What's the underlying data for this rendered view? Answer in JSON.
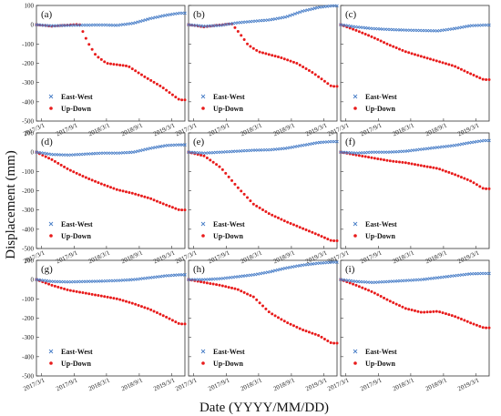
{
  "figure": {
    "ylabel": "Displacement (mm)",
    "xlabel": "Date (YYYY/MM/DD)"
  },
  "colors": {
    "east_west": "#4a7fc8",
    "up_down": "#e81b1b"
  },
  "chart_data": [
    {
      "panel": "(a)",
      "type": "scatter",
      "ylim": [
        -500,
        100
      ],
      "yticks": [
        "100",
        "0",
        "-100",
        "-200",
        "-300",
        "-400",
        "-500"
      ],
      "xticks": [
        "2017/3/1",
        "2017/9/1",
        "2018/3/1",
        "2018/9/1",
        "2019/3/1"
      ],
      "legend": [
        "East-West",
        "Up-Down"
      ],
      "legend_position": "bottom-left",
      "series": [
        {
          "name": "East-West",
          "color": "#4a7fc8",
          "x": [
            "2017/2/1",
            "2017/5/1",
            "2017/8/1",
            "2017/11/1",
            "2018/2/1",
            "2018/5/1",
            "2018/8/1",
            "2018/11/1",
            "2019/2/1",
            "2019/4/15"
          ],
          "y": [
            0,
            -6,
            -3,
            -2,
            -1,
            -3,
            8,
            32,
            50,
            60
          ]
        },
        {
          "name": "Up-Down",
          "color": "#e81b1b",
          "x": [
            "2017/2/1",
            "2017/5/1",
            "2017/7/15",
            "2017/10/1",
            "2017/11/15",
            "2018/1/1",
            "2018/3/1",
            "2018/7/1",
            "2018/10/1",
            "2019/1/1",
            "2019/4/15"
          ],
          "y": [
            0,
            -8,
            -2,
            2,
            -90,
            -160,
            -200,
            -215,
            -270,
            -320,
            -390
          ]
        }
      ]
    },
    {
      "panel": "(b)",
      "type": "scatter",
      "ylim": [
        -500,
        100
      ],
      "xticks": [
        "2017/3/1",
        "2017/9/1",
        "2018/3/1",
        "2018/9/1",
        "2019/3/1"
      ],
      "legend": [
        "East-West",
        "Up-Down"
      ],
      "legend_position": "bottom-left",
      "series": [
        {
          "name": "East-West",
          "color": "#4a7fc8",
          "x": [
            "2017/2/1",
            "2017/5/1",
            "2017/8/1",
            "2017/11/1",
            "2018/2/1",
            "2018/5/1",
            "2018/8/1",
            "2018/11/1",
            "2019/2/1",
            "2019/4/15"
          ],
          "y": [
            0,
            -8,
            -3,
            10,
            18,
            25,
            40,
            70,
            90,
            98
          ]
        },
        {
          "name": "Up-Down",
          "color": "#e81b1b",
          "x": [
            "2017/2/1",
            "2017/5/1",
            "2017/7/15",
            "2017/10/1",
            "2017/11/15",
            "2018/1/1",
            "2018/3/1",
            "2018/7/1",
            "2018/10/1",
            "2019/1/1",
            "2019/4/15"
          ],
          "y": [
            0,
            -12,
            -2,
            5,
            -45,
            -105,
            -140,
            -170,
            -200,
            -250,
            -320
          ]
        }
      ]
    },
    {
      "panel": "(c)",
      "type": "scatter",
      "ylim": [
        -500,
        100
      ],
      "xticks": [
        "2017/3/1",
        "2017/9/1",
        "2018/3/1",
        "2018/9/1",
        "2019/3/1"
      ],
      "legend": [
        "East-West",
        "Up-Down"
      ],
      "legend_position": "bottom-left",
      "series": [
        {
          "name": "East-West",
          "color": "#4a7fc8",
          "x": [
            "2017/2/1",
            "2017/5/1",
            "2017/8/1",
            "2017/11/1",
            "2018/2/1",
            "2018/5/1",
            "2018/8/1",
            "2018/11/1",
            "2019/2/1",
            "2019/4/15"
          ],
          "y": [
            0,
            -12,
            -20,
            -25,
            -28,
            -30,
            -32,
            -20,
            -5,
            -2
          ]
        },
        {
          "name": "Up-Down",
          "color": "#e81b1b",
          "x": [
            "2017/2/1",
            "2017/5/1",
            "2017/8/1",
            "2017/11/1",
            "2018/2/1",
            "2018/5/1",
            "2018/8/1",
            "2018/11/1",
            "2019/2/1",
            "2019/4/15"
          ],
          "y": [
            0,
            -30,
            -65,
            -105,
            -140,
            -165,
            -190,
            -215,
            -255,
            -285
          ]
        }
      ]
    },
    {
      "panel": "(d)",
      "type": "scatter",
      "ylim": [
        -500,
        100
      ],
      "yticks": [
        "100",
        "0",
        "-100",
        "-200",
        "-300",
        "-400",
        "-500"
      ],
      "xticks": [
        "2017/3/1",
        "2017/9/1",
        "2018/3/1",
        "2018/9/1",
        "2019/3/1"
      ],
      "legend": [
        "East-West",
        "Up-Down"
      ],
      "legend_position": "bottom-left",
      "series": [
        {
          "name": "East-West",
          "color": "#4a7fc8",
          "x": [
            "2017/2/1",
            "2017/5/1",
            "2017/8/1",
            "2017/11/1",
            "2018/2/1",
            "2018/5/1",
            "2018/8/1",
            "2018/11/1",
            "2019/2/1",
            "2019/4/15"
          ],
          "y": [
            0,
            -12,
            -15,
            -10,
            -5,
            -5,
            0,
            20,
            35,
            38
          ]
        },
        {
          "name": "Up-Down",
          "color": "#e81b1b",
          "x": [
            "2017/2/1",
            "2017/5/1",
            "2017/8/1",
            "2017/11/1",
            "2018/2/1",
            "2018/5/1",
            "2018/8/1",
            "2018/11/1",
            "2019/2/1",
            "2019/4/15"
          ],
          "y": [
            0,
            -40,
            -90,
            -130,
            -165,
            -195,
            -215,
            -240,
            -275,
            -300
          ]
        }
      ]
    },
    {
      "panel": "(e)",
      "type": "scatter",
      "ylim": [
        -500,
        100
      ],
      "xticks": [
        "2017/3/1",
        "2017/9/1",
        "2018/3/1",
        "2018/9/1",
        "2019/3/1"
      ],
      "legend": [
        "East-West",
        "Up-Down"
      ],
      "legend_position": "bottom-left",
      "series": [
        {
          "name": "East-West",
          "color": "#4a7fc8",
          "x": [
            "2017/2/1",
            "2017/5/1",
            "2017/8/1",
            "2017/11/1",
            "2018/2/1",
            "2018/5/1",
            "2018/8/1",
            "2018/11/1",
            "2019/2/1",
            "2019/4/15"
          ],
          "y": [
            0,
            -5,
            0,
            5,
            10,
            12,
            20,
            35,
            50,
            55
          ]
        },
        {
          "name": "Up-Down",
          "color": "#e81b1b",
          "x": [
            "2017/2/1",
            "2017/5/1",
            "2017/8/1",
            "2017/11/1",
            "2018/2/1",
            "2018/5/1",
            "2018/8/1",
            "2018/11/1",
            "2019/2/1",
            "2019/4/15"
          ],
          "y": [
            0,
            -20,
            -80,
            -180,
            -270,
            -320,
            -360,
            -395,
            -430,
            -460
          ]
        }
      ]
    },
    {
      "panel": "(f)",
      "type": "scatter",
      "ylim": [
        -500,
        100
      ],
      "xticks": [
        "2017/3/1",
        "2017/9/1",
        "2018/3/1",
        "2018/9/1",
        "2019/3/1"
      ],
      "legend": [
        "East-West",
        "Up-Down"
      ],
      "legend_position": "bottom-left",
      "series": [
        {
          "name": "East-West",
          "color": "#4a7fc8",
          "x": [
            "2017/2/1",
            "2017/5/1",
            "2017/8/1",
            "2017/11/1",
            "2018/2/1",
            "2018/5/1",
            "2018/8/1",
            "2018/11/1",
            "2019/2/1",
            "2019/4/15"
          ],
          "y": [
            0,
            -5,
            0,
            0,
            5,
            15,
            25,
            35,
            50,
            60
          ]
        },
        {
          "name": "Up-Down",
          "color": "#e81b1b",
          "x": [
            "2017/2/1",
            "2017/5/1",
            "2017/8/1",
            "2017/11/1",
            "2018/2/1",
            "2018/5/1",
            "2018/8/1",
            "2018/11/1",
            "2019/2/1",
            "2019/4/15"
          ],
          "y": [
            0,
            -15,
            -30,
            -45,
            -55,
            -70,
            -85,
            -115,
            -150,
            -190
          ]
        }
      ]
    },
    {
      "panel": "(g)",
      "type": "scatter",
      "ylim": [
        -500,
        100
      ],
      "yticks": [
        "100",
        "0",
        "-100",
        "-200",
        "-300",
        "-400",
        "-500"
      ],
      "xticks": [
        "2017/3/1",
        "2017/9/1",
        "2018/3/1",
        "2018/9/1",
        "2019/3/1"
      ],
      "legend": [
        "East-West",
        "Up-Down"
      ],
      "legend_position": "bottom-left",
      "series": [
        {
          "name": "East-West",
          "color": "#4a7fc8",
          "x": [
            "2017/2/1",
            "2017/5/1",
            "2017/8/1",
            "2017/11/1",
            "2018/2/1",
            "2018/5/1",
            "2018/8/1",
            "2018/11/1",
            "2019/2/1",
            "2019/4/15"
          ],
          "y": [
            0,
            -10,
            -12,
            -10,
            -8,
            -5,
            0,
            10,
            20,
            25
          ]
        },
        {
          "name": "Up-Down",
          "color": "#e81b1b",
          "x": [
            "2017/2/1",
            "2017/5/1",
            "2017/8/1",
            "2017/11/1",
            "2018/2/1",
            "2018/5/1",
            "2018/8/1",
            "2018/11/1",
            "2019/2/1",
            "2019/4/15"
          ],
          "y": [
            0,
            -30,
            -55,
            -70,
            -85,
            -100,
            -125,
            -155,
            -195,
            -230
          ]
        }
      ]
    },
    {
      "panel": "(h)",
      "type": "scatter",
      "ylim": [
        -500,
        100
      ],
      "xticks": [
        "2017/3/1",
        "2017/9/1",
        "2018/3/1",
        "2018/9/1",
        "2019/3/1"
      ],
      "legend": [
        "East-West",
        "Up-Down"
      ],
      "legend_position": "bottom-left",
      "series": [
        {
          "name": "East-West",
          "color": "#4a7fc8",
          "x": [
            "2017/2/1",
            "2017/5/1",
            "2017/8/1",
            "2017/11/1",
            "2018/2/1",
            "2018/5/1",
            "2018/8/1",
            "2018/11/1",
            "2019/2/1",
            "2019/4/15"
          ],
          "y": [
            0,
            0,
            5,
            15,
            25,
            40,
            60,
            75,
            85,
            90
          ]
        },
        {
          "name": "Up-Down",
          "color": "#e81b1b",
          "x": [
            "2017/2/1",
            "2017/5/1",
            "2017/8/1",
            "2017/11/1",
            "2018/2/1",
            "2018/5/1",
            "2018/8/1",
            "2018/11/1",
            "2019/2/1",
            "2019/4/15"
          ],
          "y": [
            0,
            -15,
            -30,
            -50,
            -90,
            -170,
            -220,
            -260,
            -290,
            -330
          ]
        }
      ]
    },
    {
      "panel": "(i)",
      "type": "scatter",
      "ylim": [
        -500,
        100
      ],
      "xticks": [
        "2017/3/1",
        "2017/9/1",
        "2018/3/1",
        "2018/9/1",
        "2019/3/1"
      ],
      "legend": [
        "East-West",
        "Up-Down"
      ],
      "legend_position": "bottom-left",
      "series": [
        {
          "name": "East-West",
          "color": "#4a7fc8",
          "x": [
            "2017/2/1",
            "2017/5/1",
            "2017/8/1",
            "2017/11/1",
            "2018/2/1",
            "2018/5/1",
            "2018/8/1",
            "2018/11/1",
            "2019/2/1",
            "2019/4/15"
          ],
          "y": [
            0,
            -10,
            -15,
            -10,
            -5,
            0,
            10,
            20,
            30,
            32
          ]
        },
        {
          "name": "Up-Down",
          "color": "#e81b1b",
          "x": [
            "2017/2/1",
            "2017/5/1",
            "2017/8/1",
            "2017/11/1",
            "2018/2/1",
            "2018/5/1",
            "2018/8/1",
            "2018/11/1",
            "2019/2/1",
            "2019/4/15"
          ],
          "y": [
            0,
            -30,
            -65,
            -110,
            -150,
            -170,
            -165,
            -190,
            -225,
            -250
          ]
        }
      ]
    }
  ]
}
